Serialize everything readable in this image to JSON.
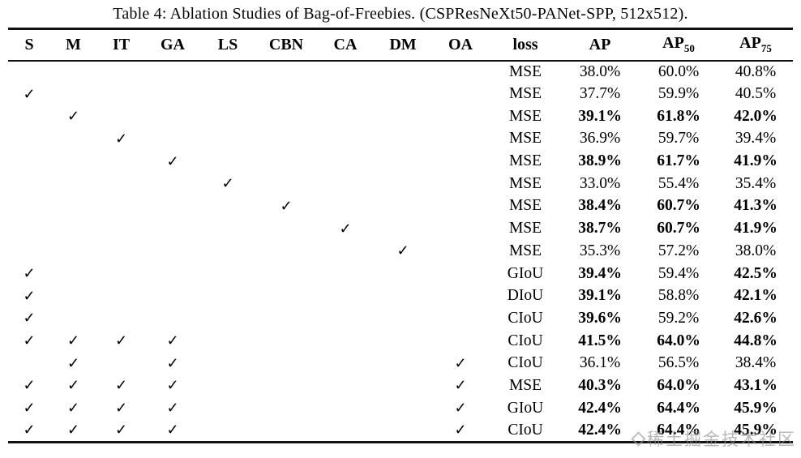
{
  "title": "Table 4: Ablation Studies of Bag-of-Freebies. (CSPResNeXt50-PANet-SPP, 512x512).",
  "colors": {
    "background": "#ffffff",
    "text": "#000000",
    "rule": "#111111",
    "watermark": "#8f8f8f"
  },
  "watermark": {
    "text": "稀土掘金技术社区"
  },
  "table": {
    "check_glyph": "✓",
    "check_columns": [
      "S",
      "M",
      "IT",
      "GA",
      "LS",
      "CBN",
      "CA",
      "DM",
      "OA"
    ],
    "headers": [
      {
        "label": "S"
      },
      {
        "label": "M"
      },
      {
        "label": "IT"
      },
      {
        "label": "GA"
      },
      {
        "label": "LS"
      },
      {
        "label": "CBN"
      },
      {
        "label": "CA"
      },
      {
        "label": "DM"
      },
      {
        "label": "OA"
      },
      {
        "label": "loss"
      },
      {
        "label": "AP"
      },
      {
        "label": "AP",
        "sub": "50"
      },
      {
        "label": "AP",
        "sub": "75"
      }
    ],
    "rows": [
      {
        "checks": [],
        "loss": "MSE",
        "ap": "38.0%",
        "ap50": "60.0%",
        "ap75": "40.8%",
        "bold": []
      },
      {
        "checks": [
          "S"
        ],
        "loss": "MSE",
        "ap": "37.7%",
        "ap50": "59.9%",
        "ap75": "40.5%",
        "bold": []
      },
      {
        "checks": [
          "M"
        ],
        "loss": "MSE",
        "ap": "39.1%",
        "ap50": "61.8%",
        "ap75": "42.0%",
        "bold": [
          "ap",
          "ap50",
          "ap75"
        ]
      },
      {
        "checks": [
          "IT"
        ],
        "loss": "MSE",
        "ap": "36.9%",
        "ap50": "59.7%",
        "ap75": "39.4%",
        "bold": []
      },
      {
        "checks": [
          "GA"
        ],
        "loss": "MSE",
        "ap": "38.9%",
        "ap50": "61.7%",
        "ap75": "41.9%",
        "bold": [
          "ap",
          "ap50",
          "ap75"
        ]
      },
      {
        "checks": [
          "LS"
        ],
        "loss": "MSE",
        "ap": "33.0%",
        "ap50": "55.4%",
        "ap75": "35.4%",
        "bold": []
      },
      {
        "checks": [
          "CBN"
        ],
        "loss": "MSE",
        "ap": "38.4%",
        "ap50": "60.7%",
        "ap75": "41.3%",
        "bold": [
          "ap",
          "ap50",
          "ap75"
        ]
      },
      {
        "checks": [
          "CA"
        ],
        "loss": "MSE",
        "ap": "38.7%",
        "ap50": "60.7%",
        "ap75": "41.9%",
        "bold": [
          "ap",
          "ap50",
          "ap75"
        ]
      },
      {
        "checks": [
          "DM"
        ],
        "loss": "MSE",
        "ap": "35.3%",
        "ap50": "57.2%",
        "ap75": "38.0%",
        "bold": []
      },
      {
        "checks": [
          "S"
        ],
        "loss": "GIoU",
        "ap": "39.4%",
        "ap50": "59.4%",
        "ap75": "42.5%",
        "bold": [
          "ap",
          "ap75"
        ]
      },
      {
        "checks": [
          "S"
        ],
        "loss": "DIoU",
        "ap": "39.1%",
        "ap50": "58.8%",
        "ap75": "42.1%",
        "bold": [
          "ap",
          "ap75"
        ]
      },
      {
        "checks": [
          "S"
        ],
        "loss": "CIoU",
        "ap": "39.6%",
        "ap50": "59.2%",
        "ap75": "42.6%",
        "bold": [
          "ap",
          "ap75"
        ]
      },
      {
        "checks": [
          "S",
          "M",
          "IT",
          "GA"
        ],
        "loss": "CIoU",
        "ap": "41.5%",
        "ap50": "64.0%",
        "ap75": "44.8%",
        "bold": [
          "ap",
          "ap50",
          "ap75"
        ]
      },
      {
        "checks": [
          "M",
          "GA",
          "OA"
        ],
        "loss": "CIoU",
        "ap": "36.1%",
        "ap50": "56.5%",
        "ap75": "38.4%",
        "bold": []
      },
      {
        "checks": [
          "S",
          "M",
          "IT",
          "GA",
          "OA"
        ],
        "loss": "MSE",
        "ap": "40.3%",
        "ap50": "64.0%",
        "ap75": "43.1%",
        "bold": [
          "ap",
          "ap50",
          "ap75"
        ]
      },
      {
        "checks": [
          "S",
          "M",
          "IT",
          "GA",
          "OA"
        ],
        "loss": "GIoU",
        "ap": "42.4%",
        "ap50": "64.4%",
        "ap75": "45.9%",
        "bold": [
          "ap",
          "ap50",
          "ap75"
        ]
      },
      {
        "checks": [
          "S",
          "M",
          "IT",
          "GA",
          "OA"
        ],
        "loss": "CIoU",
        "ap": "42.4%",
        "ap50": "64.4%",
        "ap75": "45.9%",
        "bold": [
          "ap",
          "ap50",
          "ap75"
        ]
      }
    ]
  }
}
